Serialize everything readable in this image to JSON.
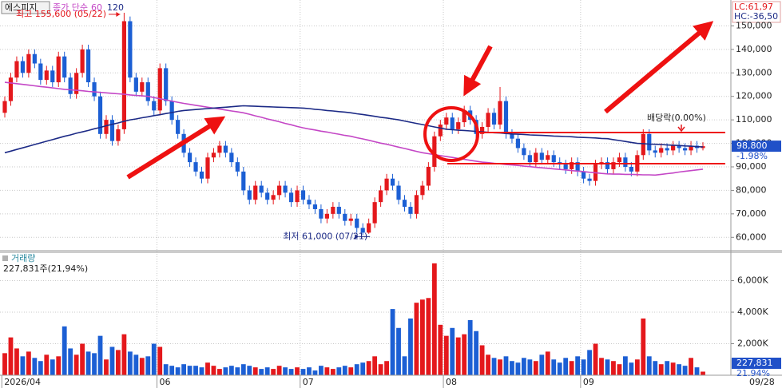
{
  "chart_data": {
    "type": "candlestick",
    "security": "에스피지",
    "ma_label": "종가 단순",
    "lc_label": "LC:61,97",
    "hc_label": "HC:-36,50",
    "high_label": "최고 155,600 (05/22)",
    "low_label": "최저 61,000 (07/21)",
    "dividend_label": "배당락(0.00%)",
    "last_price": {
      "value": 98800,
      "label": "98,800"
    },
    "change_label": "-1.98%",
    "end_date_label": "09/28",
    "up_color": "#e4181c",
    "down_color": "#1c5fd4",
    "categories": [
      "2026/04",
      null,
      null,
      null,
      null,
      null,
      null,
      null,
      null,
      null,
      null,
      null,
      null,
      null,
      null,
      null,
      null,
      null,
      null,
      null,
      null,
      null,
      null,
      null,
      null,
      null,
      "06",
      null,
      null,
      null,
      null,
      null,
      null,
      null,
      null,
      null,
      null,
      null,
      null,
      null,
      null,
      null,
      null,
      null,
      null,
      null,
      null,
      null,
      null,
      null,
      "07",
      null,
      null,
      null,
      null,
      null,
      null,
      null,
      null,
      null,
      null,
      null,
      null,
      null,
      null,
      null,
      null,
      null,
      null,
      null,
      null,
      null,
      null,
      null,
      "08",
      null,
      null,
      null,
      null,
      null,
      null,
      null,
      null,
      null,
      null,
      null,
      null,
      null,
      null,
      null,
      null,
      null,
      null,
      null,
      null,
      null,
      null,
      "09",
      null,
      null,
      null,
      null,
      null,
      null,
      null,
      null,
      null,
      null,
      null,
      null,
      null,
      null,
      null,
      null,
      null,
      null,
      null,
      null
    ],
    "open": [
      113000,
      118000,
      128000,
      135000,
      130000,
      138000,
      134000,
      127000,
      131000,
      126000,
      137000,
      128000,
      121000,
      130000,
      140000,
      126000,
      120000,
      104000,
      110000,
      101000,
      106000,
      152000,
      128000,
      122000,
      126000,
      118000,
      114000,
      132000,
      118000,
      110000,
      104000,
      96000,
      92000,
      88000,
      85000,
      94000,
      96000,
      99000,
      96000,
      92000,
      88000,
      80000,
      76000,
      82000,
      79000,
      76000,
      78000,
      82000,
      79000,
      75000,
      80000,
      76000,
      74000,
      72000,
      68000,
      70000,
      73000,
      70000,
      67000,
      68000,
      64000,
      62000,
      66000,
      75000,
      80000,
      85000,
      82000,
      76000,
      73000,
      70000,
      78000,
      82000,
      90000,
      103000,
      108000,
      111000,
      106000,
      109000,
      114000,
      110000,
      104000,
      107000,
      113000,
      108000,
      118000,
      104000,
      102000,
      98000,
      95000,
      92000,
      96000,
      93000,
      95000,
      92000,
      91000,
      89000,
      92000,
      88000,
      85000,
      84000,
      91000,
      92000,
      89000,
      92000,
      94000,
      90000,
      88000,
      95000,
      104000,
      97000,
      96000,
      98000,
      97000,
      99000,
      98000,
      97000,
      99000,
      98000
    ],
    "high": [
      120000,
      130000,
      137000,
      137000,
      140000,
      140000,
      136000,
      133000,
      133000,
      139000,
      139000,
      130000,
      132000,
      142000,
      142000,
      128000,
      122000,
      112000,
      112000,
      108000,
      155600,
      154000,
      130000,
      128000,
      128000,
      120000,
      134000,
      134000,
      120000,
      112000,
      106000,
      98000,
      94000,
      90000,
      96000,
      98000,
      101000,
      101000,
      98000,
      94000,
      90000,
      82000,
      84000,
      84000,
      81000,
      80000,
      84000,
      84000,
      81000,
      82000,
      82000,
      78000,
      76000,
      74000,
      72000,
      75000,
      75000,
      72000,
      70000,
      70000,
      66000,
      68000,
      77000,
      82000,
      87000,
      87000,
      84000,
      78000,
      75000,
      80000,
      84000,
      92000,
      105000,
      110000,
      113000,
      113000,
      111000,
      116000,
      116000,
      112000,
      109000,
      115000,
      115000,
      124000,
      120000,
      106000,
      104000,
      100000,
      97000,
      98000,
      98000,
      97000,
      97000,
      94000,
      93000,
      94000,
      94000,
      90000,
      87000,
      93000,
      94000,
      94000,
      94000,
      96000,
      96000,
      92000,
      97000,
      106000,
      106000,
      99000,
      100000,
      100000,
      101000,
      101000,
      100000,
      101000,
      101000,
      100500
    ],
    "low": [
      111000,
      116000,
      126000,
      128000,
      128000,
      132000,
      125000,
      125000,
      124000,
      124000,
      126000,
      119000,
      119000,
      128000,
      124000,
      118000,
      102000,
      102000,
      99000,
      99000,
      104000,
      126000,
      120000,
      120000,
      116000,
      112000,
      112000,
      116000,
      108000,
      102000,
      94000,
      90000,
      86000,
      83000,
      83000,
      92000,
      94000,
      94000,
      90000,
      86000,
      78000,
      74000,
      74000,
      77000,
      74000,
      74000,
      76000,
      77000,
      73000,
      73000,
      74000,
      72000,
      70000,
      66000,
      66000,
      68000,
      68000,
      65000,
      65000,
      62000,
      61000,
      61500,
      64000,
      73000,
      78000,
      80000,
      74000,
      71000,
      68000,
      68000,
      76000,
      80000,
      88000,
      101000,
      106000,
      104000,
      104000,
      107000,
      108000,
      102000,
      102000,
      105000,
      106000,
      106000,
      102000,
      100000,
      96000,
      93000,
      90000,
      90000,
      91000,
      91000,
      90000,
      89000,
      87000,
      87000,
      86000,
      83000,
      82000,
      82000,
      89000,
      87000,
      87000,
      90000,
      88000,
      86000,
      86000,
      93000,
      95000,
      94000,
      94000,
      95000,
      95000,
      96000,
      95000,
      95000,
      96000,
      97000
    ],
    "close": [
      118000,
      128000,
      135000,
      130000,
      138000,
      134000,
      127000,
      131000,
      126000,
      137000,
      128000,
      121000,
      130000,
      140000,
      126000,
      120000,
      104000,
      110000,
      101000,
      106000,
      152000,
      128000,
      122000,
      126000,
      118000,
      114000,
      132000,
      118000,
      110000,
      104000,
      96000,
      92000,
      88000,
      85000,
      94000,
      96000,
      99000,
      96000,
      92000,
      88000,
      80000,
      76000,
      82000,
      79000,
      76000,
      78000,
      82000,
      79000,
      75000,
      80000,
      76000,
      74000,
      72000,
      68000,
      70000,
      73000,
      70000,
      67000,
      68000,
      64000,
      62000,
      66000,
      75000,
      80000,
      85000,
      82000,
      76000,
      73000,
      70000,
      78000,
      82000,
      90000,
      103000,
      108000,
      111000,
      106000,
      109000,
      114000,
      110000,
      104000,
      107000,
      113000,
      108000,
      118000,
      104000,
      102000,
      98000,
      95000,
      92000,
      96000,
      93000,
      95000,
      92000,
      91000,
      89000,
      92000,
      88000,
      85000,
      84000,
      91000,
      92000,
      89000,
      92000,
      94000,
      90000,
      88000,
      95000,
      104000,
      97000,
      96000,
      98000,
      97000,
      99000,
      98000,
      97000,
      99000,
      98000,
      98800
    ],
    "moving_averages": [
      {
        "name": "60",
        "color": "#c447c6",
        "values": [
          126000,
          125700,
          125400,
          125100,
          124800,
          124500,
          124200,
          123900,
          123600,
          123300,
          123000,
          122800,
          122600,
          122400,
          122100,
          121900,
          121700,
          121500,
          121300,
          121100,
          120900,
          120600,
          120400,
          120200,
          120000,
          119500,
          119000,
          118500,
          118000,
          117500,
          117000,
          116600,
          116200,
          115800,
          115400,
          115000,
          114600,
          114200,
          113800,
          113400,
          113000,
          112400,
          111700,
          111100,
          110400,
          109800,
          109200,
          108500,
          107900,
          107200,
          106600,
          106100,
          105700,
          105200,
          104800,
          104300,
          103900,
          103400,
          103000,
          102400,
          101900,
          101300,
          100700,
          100100,
          99600,
          99000,
          98400,
          97800,
          97200,
          96600,
          96000,
          95600,
          95200,
          94800,
          94400,
          94000,
          93600,
          93200,
          92800,
          92400,
          92000,
          91800,
          91500,
          91300,
          91000,
          90800,
          90600,
          90300,
          90100,
          89800,
          89600,
          89400,
          89100,
          88900,
          88700,
          88400,
          88200,
          88000,
          87700,
          87500,
          87200,
          87000,
          86900,
          86900,
          86800,
          86800,
          86700,
          86600,
          86600,
          86500,
          86800,
          87100,
          87400,
          87800,
          88100,
          88400,
          88700,
          89000
        ]
      },
      {
        "name": "120",
        "color": "#1c2a86",
        "values": [
          96000,
          96700,
          97400,
          98100,
          98800,
          99500,
          100200,
          100900,
          101600,
          102300,
          103000,
          103600,
          104300,
          104900,
          105500,
          106200,
          106800,
          107500,
          108100,
          108700,
          109400,
          110000,
          110400,
          110900,
          111300,
          111800,
          112200,
          112700,
          113100,
          113600,
          114000,
          114200,
          114400,
          114600,
          114800,
          115000,
          115200,
          115400,
          115600,
          115800,
          116000,
          115900,
          115800,
          115700,
          115600,
          115500,
          115400,
          115300,
          115200,
          115100,
          115000,
          114800,
          114500,
          114300,
          114000,
          113800,
          113500,
          113300,
          113000,
          112600,
          112300,
          111900,
          111500,
          111100,
          110800,
          110400,
          110000,
          109500,
          109000,
          108500,
          108000,
          107500,
          107000,
          106500,
          106000,
          105800,
          105600,
          105500,
          105300,
          105100,
          104900,
          104700,
          104500,
          104400,
          104200,
          104000,
          103900,
          103800,
          103600,
          103500,
          103400,
          103300,
          103100,
          103000,
          102900,
          102800,
          102600,
          102500,
          102400,
          102300,
          102100,
          102000,
          101600,
          101200,
          100800,
          100400,
          100000,
          99900,
          99700,
          99600,
          99500,
          99300,
          99200,
          99100,
          98900,
          98800,
          98600,
          98500
        ]
      }
    ],
    "ylim": [
      55000,
      160000
    ],
    "yticks": [
      {
        "value": 60000,
        "label": "60,000"
      },
      {
        "value": 70000,
        "label": "70,000"
      },
      {
        "value": 80000,
        "label": "80,000"
      },
      {
        "value": 90000,
        "label": "90,000"
      },
      {
        "value": 100000,
        "label": "100,000"
      },
      {
        "value": 110000,
        "label": "110,000"
      },
      {
        "value": 120000,
        "label": "120,000"
      },
      {
        "value": 130000,
        "label": "130,000"
      },
      {
        "value": 140000,
        "label": "140,000"
      },
      {
        "value": 150000,
        "label": "150,000"
      }
    ],
    "grid": true,
    "volume": {
      "title": "거래량",
      "summary": "227,831주(21,94%)",
      "last_label": "227,831",
      "ratio_label": "21.94%",
      "ylim": [
        0,
        7700000
      ],
      "yticks": [
        {
          "value": 2000000,
          "label": "2,000K"
        },
        {
          "value": 4000000,
          "label": "4,000K"
        },
        {
          "value": 6000000,
          "label": "6,000K"
        }
      ],
      "values": [
        1400000,
        2400000,
        1700000,
        1200000,
        1500000,
        1100000,
        900000,
        1300000,
        1000000,
        1200000,
        3100000,
        1700000,
        1300000,
        2000000,
        1500000,
        1400000,
        2500000,
        1000000,
        1800000,
        1600000,
        2600000,
        1500000,
        1300000,
        1100000,
        1200000,
        2000000,
        1800000,
        700000,
        600000,
        500000,
        700000,
        600000,
        600000,
        500000,
        800000,
        600000,
        400000,
        500000,
        600000,
        500000,
        700000,
        600000,
        500000,
        400000,
        500000,
        400000,
        600000,
        500000,
        400000,
        500000,
        400000,
        500000,
        300000,
        600000,
        500000,
        400000,
        500000,
        600000,
        500000,
        700000,
        800000,
        900000,
        1200000,
        700000,
        900000,
        4200000,
        3000000,
        1200000,
        3600000,
        4600000,
        4800000,
        4900000,
        7100000,
        3200000,
        2500000,
        3000000,
        2400000,
        2600000,
        3500000,
        2800000,
        1900000,
        1300000,
        1100000,
        1000000,
        1200000,
        900000,
        800000,
        1100000,
        1000000,
        900000,
        1300000,
        1500000,
        1000000,
        800000,
        1100000,
        900000,
        1200000,
        1000000,
        1600000,
        2000000,
        1100000,
        1000000,
        900000,
        700000,
        1200000,
        800000,
        1000000,
        3600000,
        1200000,
        900000,
        700000,
        900000,
        800000,
        700000,
        600000,
        1100000,
        500000,
        227831
      ]
    }
  }
}
